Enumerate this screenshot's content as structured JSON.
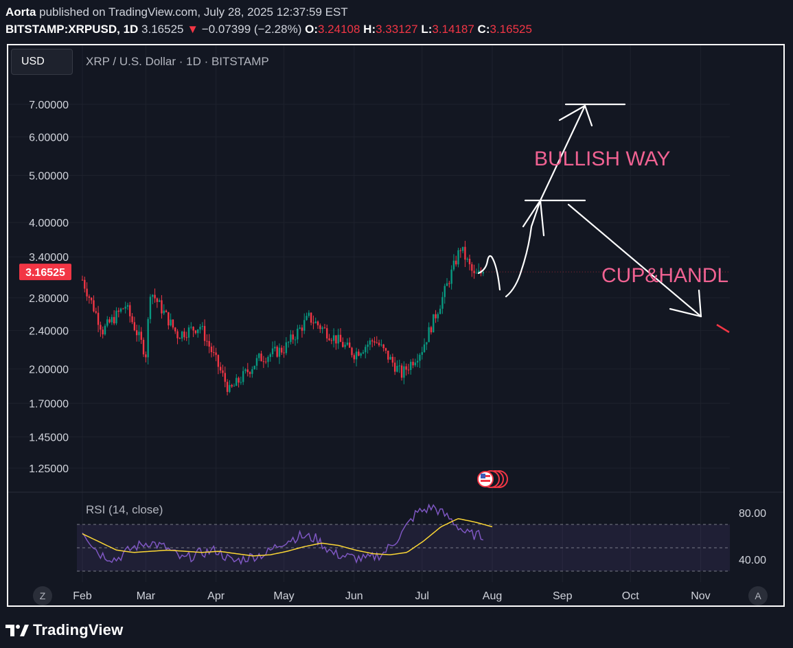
{
  "header": {
    "author": "Aorta",
    "published_text": "published on TradingView.com, July 28, 2025 12:37:59 EST",
    "symbol": "BITSTAMP:XRPUSD, 1D",
    "last_price": "3.16525",
    "change_arrow": "▼",
    "change": "−0.07399 (−2.28%)",
    "open_label": "O:",
    "open": "3.24108",
    "high_label": "H:",
    "high": "3.33127",
    "low_label": "L:",
    "low": "3.14187",
    "close_label": "C:",
    "close": "3.16525"
  },
  "toolbar": {
    "currency_button": "USD"
  },
  "pane": {
    "title": "XRP / U.S. Dollar · 1D · BITSTAMP",
    "current_price_tag": "3.16525",
    "annotations": [
      "BULLISH WAY",
      "CUP&HANDLE"
    ]
  },
  "rsi": {
    "title": "RSI (14, close)"
  },
  "time_axis": {
    "left_button": "Z",
    "right_button": "A"
  },
  "footer": {
    "brand": "TradingView"
  },
  "colors": {
    "up": "#089981",
    "down": "#f23645",
    "annotation": "#f06292",
    "rsi_line": "#7e57c2",
    "rsi_ma": "#fdd835",
    "background": "#131722"
  },
  "chart_data": [
    {
      "type": "candlestick",
      "title": "XRP / U.S. Dollar · 1D · BITSTAMP",
      "y_scale": "log",
      "y_ticks": [
        "7.00000",
        "6.00000",
        "5.00000",
        "4.00000",
        "3.40000",
        "2.80000",
        "2.40000",
        "2.00000",
        "1.70000",
        "1.45000",
        "1.25000"
      ],
      "x_ticks": [
        "Feb",
        "Mar",
        "Apr",
        "May",
        "Jun",
        "Jul",
        "Aug",
        "Sep",
        "Oct",
        "Nov"
      ],
      "x_start_month": "Feb",
      "key_closes": [
        {
          "date": "Feb 1",
          "close": 3.05
        },
        {
          "date": "Feb 10",
          "close": 2.4
        },
        {
          "date": "Feb 20",
          "close": 2.7
        },
        {
          "date": "Mar 1",
          "close": 2.15
        },
        {
          "date": "Mar 3",
          "close": 2.9
        },
        {
          "date": "Mar 15",
          "close": 2.35
        },
        {
          "date": "Mar 25",
          "close": 2.45
        },
        {
          "date": "Apr 7",
          "close": 1.8
        },
        {
          "date": "Apr 20",
          "close": 2.1
        },
        {
          "date": "May 1",
          "close": 2.2
        },
        {
          "date": "May 12",
          "close": 2.55
        },
        {
          "date": "Jun 1",
          "close": 2.15
        },
        {
          "date": "Jun 10",
          "close": 2.3
        },
        {
          "date": "Jun 22",
          "close": 1.95
        },
        {
          "date": "Jul 1",
          "close": 2.2
        },
        {
          "date": "Jul 10",
          "close": 2.8
        },
        {
          "date": "Jul 18",
          "close": 3.55
        },
        {
          "date": "Jul 24",
          "close": 3.1
        },
        {
          "date": "Jul 28",
          "close": 3.16525
        }
      ],
      "current_price": 3.16525
    },
    {
      "type": "line",
      "title": "RSI (14, close)",
      "y_ticks": [
        "80.00",
        "40.00"
      ],
      "series": [
        {
          "values": [
            65,
            45,
            40,
            50,
            55,
            50,
            40,
            45,
            48,
            38,
            42,
            45,
            55,
            60,
            58,
            45,
            42,
            40,
            45,
            60,
            80,
            85,
            75,
            62,
            60
          ]
        },
        {
          "values": [
            62,
            55,
            48,
            46,
            47,
            48,
            47,
            46,
            47,
            45,
            43,
            44,
            47,
            51,
            54,
            52,
            48,
            45,
            44,
            46,
            56,
            68,
            75,
            72,
            68
          ]
        }
      ]
    }
  ]
}
